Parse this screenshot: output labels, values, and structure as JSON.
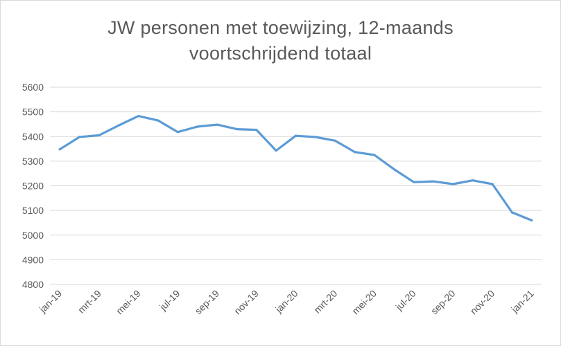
{
  "chart_data": {
    "type": "line",
    "title_lines": [
      "JW personen met toewijzing, 12-maands",
      "voortschrijdend totaal"
    ],
    "xlabel": "",
    "ylabel": "",
    "ylim": [
      4800,
      5600
    ],
    "yticks": [
      4800,
      4900,
      5000,
      5100,
      5200,
      5300,
      5400,
      5500,
      5600
    ],
    "x": [
      "jan-19",
      "feb-19",
      "mrt-19",
      "apr-19",
      "mei-19",
      "jun-19",
      "jul-19",
      "aug-19",
      "sep-19",
      "okt-19",
      "nov-19",
      "dec-19",
      "jan-20",
      "feb-20",
      "mrt-20",
      "apr-20",
      "mei-20",
      "jun-20",
      "jul-20",
      "aug-20",
      "sep-20",
      "okt-20",
      "nov-20",
      "dec-20",
      "jan-21"
    ],
    "x_tick_labels": [
      "jan-19",
      "mrt-19",
      "mei-19",
      "jul-19",
      "sep-19",
      "nov-19",
      "jan-20",
      "mrt-20",
      "mei-20",
      "jul-20",
      "sep-20",
      "nov-20",
      "jan-21"
    ],
    "series": [
      {
        "values": [
          5348,
          5398,
          5405,
          5445,
          5483,
          5465,
          5418,
          5440,
          5448,
          5430,
          5427,
          5343,
          5403,
          5398,
          5383,
          5337,
          5325,
          5267,
          5215,
          5218,
          5207,
          5222,
          5207,
          5092,
          5060
        ],
        "color": "#5b9bd5"
      }
    ],
    "grid": true,
    "gridline_color": "#d9d9d9",
    "legend": "none"
  }
}
